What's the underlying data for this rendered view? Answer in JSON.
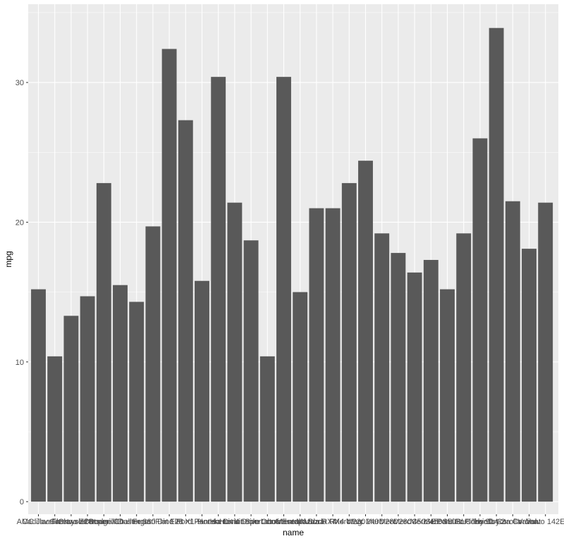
{
  "chart_data": {
    "type": "bar",
    "xlabel": "name",
    "ylabel": "mpg",
    "ylim": [
      -0.9,
      35.6
    ],
    "y_ticks": [
      0,
      10,
      20,
      30
    ],
    "grid": true,
    "legend": "none",
    "colors": {
      "panel": "#ebebeb",
      "grid_major": "#ffffff",
      "bar": "#595959",
      "tick": "#4d4d4d"
    },
    "categories": [
      "AMC Javelin",
      "Cadillac Fleetwood",
      "Camaro Z28",
      "Chrysler Imperial",
      "Datsun 710",
      "Dodge Challenger",
      "Duster 360",
      "Ferrari Dino",
      "Fiat 128",
      "Fiat X1-9",
      "Ford Pantera L",
      "Honda Civic",
      "Hornet 4 Drive",
      "Hornet Sportabout",
      "Lincoln Continental",
      "Lotus Europa",
      "Maserati Bora",
      "Mazda RX4",
      "Mazda RX4 Wag",
      "Merc 230",
      "Merc 240D",
      "Merc 280",
      "Merc 280C",
      "Merc 450SE",
      "Merc 450SL",
      "Merc 450SLC",
      "Pontiac Firebird",
      "Porsche 914-2",
      "Toyota Corolla",
      "Toyota Corona",
      "Valiant",
      "Volvo 142E"
    ],
    "values": [
      15.2,
      10.4,
      13.3,
      14.7,
      22.8,
      15.5,
      14.3,
      19.7,
      32.4,
      27.3,
      15.8,
      30.4,
      21.4,
      18.7,
      10.4,
      30.4,
      15.0,
      21.0,
      21.0,
      22.8,
      24.4,
      19.2,
      17.8,
      16.4,
      17.3,
      15.2,
      19.2,
      26.0,
      33.9,
      21.5,
      18.1,
      21.4
    ]
  }
}
